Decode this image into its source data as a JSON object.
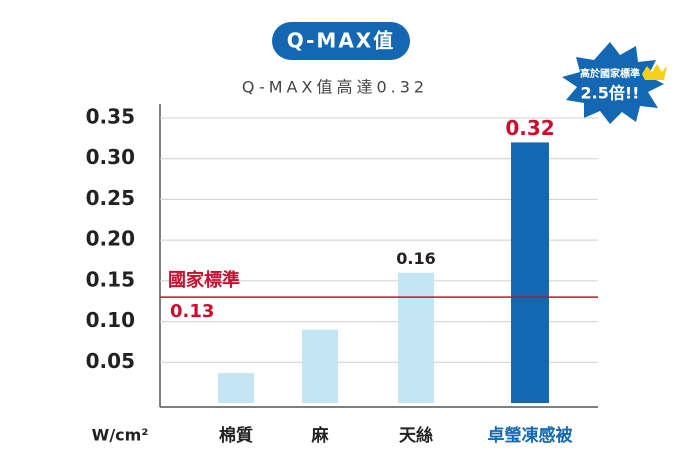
{
  "chart_data": {
    "type": "bar",
    "title": "Q-MAX值",
    "subtitle": "Q-MAX值高達0.32",
    "categories": [
      "棉質",
      "麻",
      "天絲",
      "卓瑩凍感被"
    ],
    "values": [
      0.037,
      0.09,
      0.16,
      0.32
    ],
    "colors": [
      "#c4e5f4",
      "#c4e5f4",
      "#c4e5f4",
      "#1468b3"
    ],
    "category_colors": [
      "#222222",
      "#222222",
      "#222222",
      "#1468b3"
    ],
    "show_value": [
      false,
      false,
      true,
      true
    ],
    "value_label_colors": [
      "#222222",
      "#222222",
      "#222222",
      "#c8102e"
    ],
    "ylim": [
      0,
      0.35
    ],
    "yticks": [
      0.05,
      {
        "value": 0.1,
        "label": "0.10"
      },
      0.15,
      {
        "value": 0.2,
        "label": "0.20"
      },
      0.25,
      {
        "value": 0.3,
        "label": "0.30"
      },
      0.35
    ],
    "grid": true,
    "y_unit": "W/cm²",
    "reference_line": {
      "label": "國家標準",
      "value": 0.13,
      "color": "#c8102e"
    },
    "badge": {
      "lines": [
        "高於國家標準",
        "2.5倍!!"
      ]
    }
  }
}
